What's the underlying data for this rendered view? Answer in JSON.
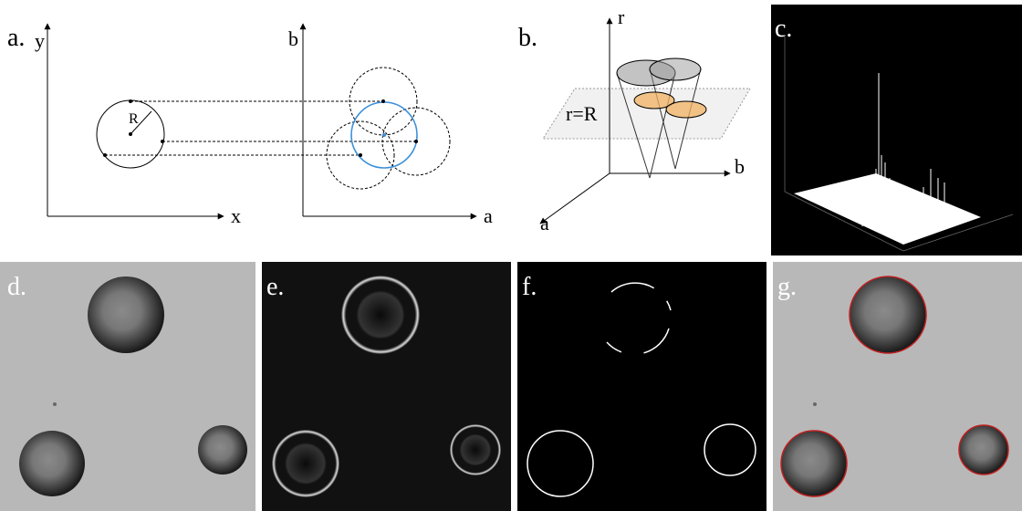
{
  "panel_a": {
    "label": "a.",
    "left_axes": {
      "y": "y",
      "x": "x"
    },
    "right_axes": {
      "y": "b",
      "x": "a"
    },
    "radius_label": "R"
  },
  "panel_b": {
    "label": "b.",
    "axes": {
      "r": "r",
      "b": "b",
      "a": "a"
    },
    "plane_label": "r=R"
  },
  "panel_c": {
    "label": "c."
  },
  "panel_d": {
    "label": "d."
  },
  "panel_e": {
    "label": "e."
  },
  "panel_f": {
    "label": "f."
  },
  "panel_g": {
    "label": "g."
  }
}
